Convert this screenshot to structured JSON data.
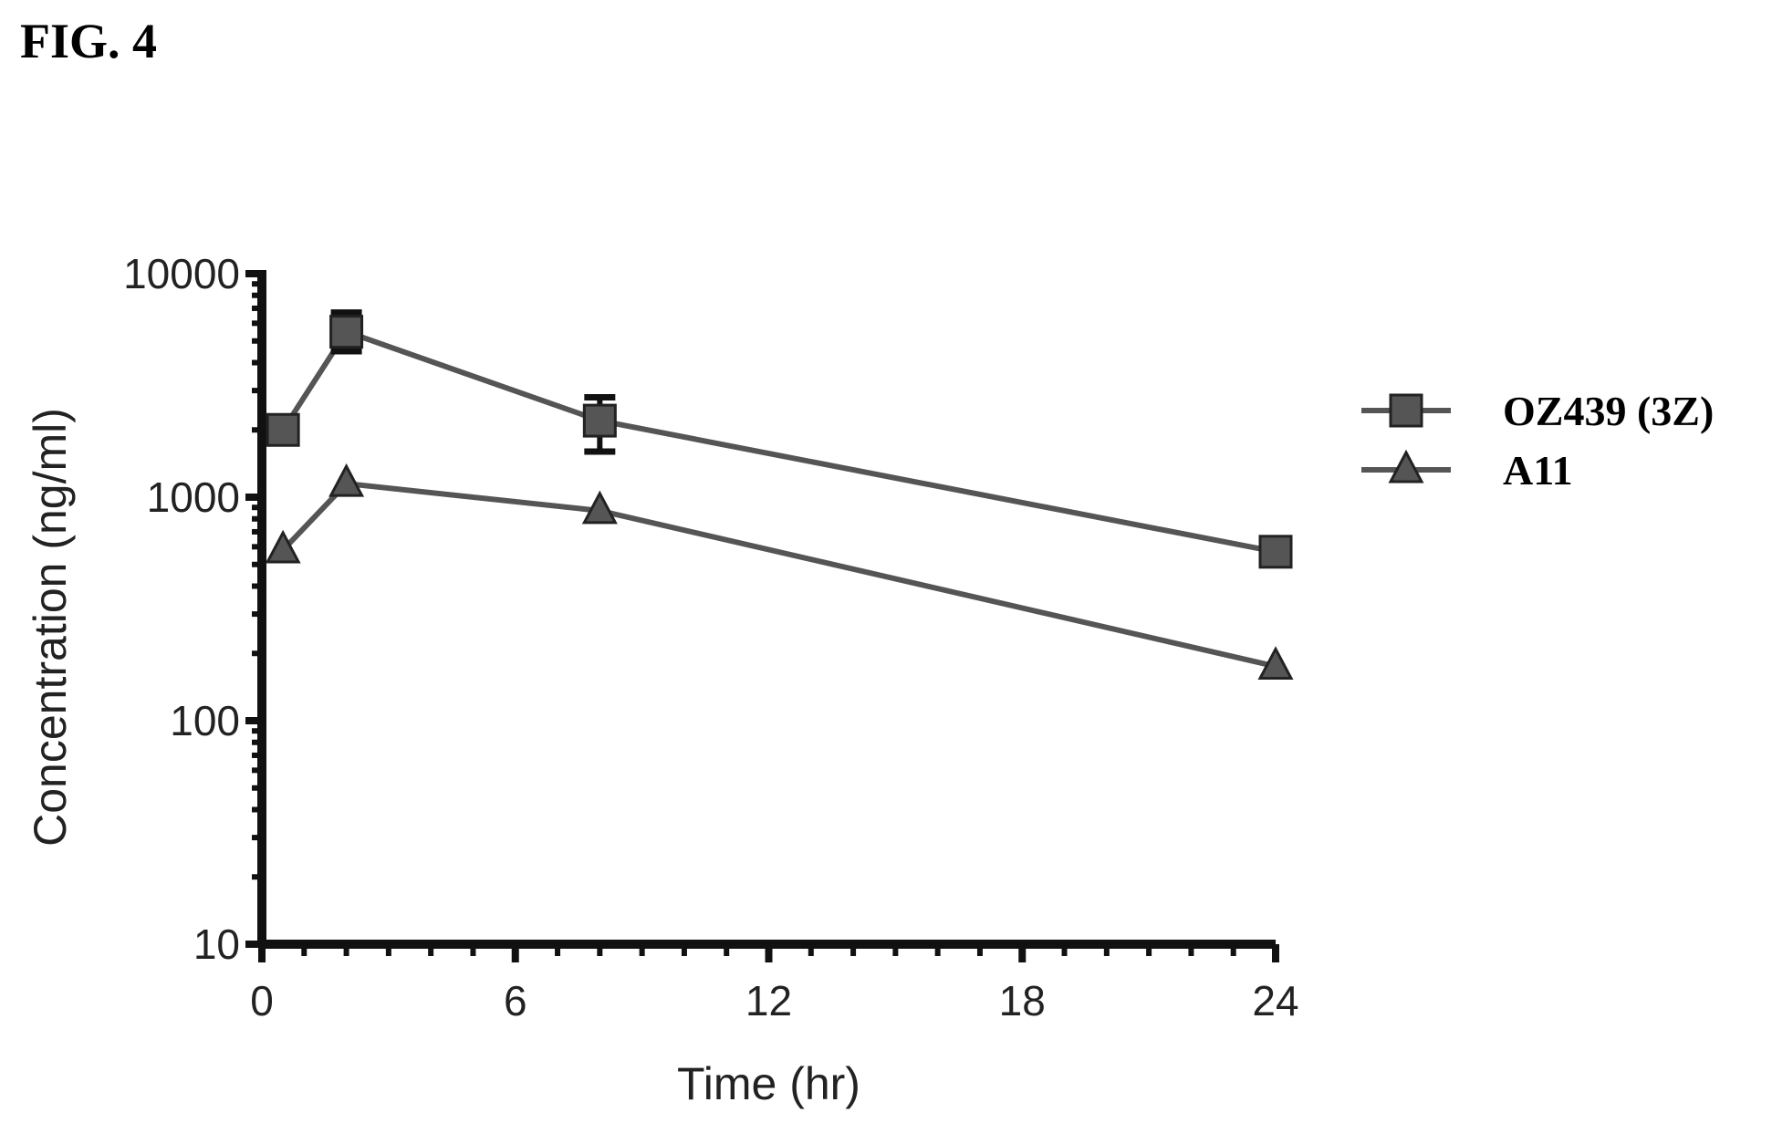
{
  "figure_label": "FIG. 4",
  "chart_data": {
    "type": "line",
    "xlabel": "Time (hr)",
    "ylabel": "Concentration (ng/ml)",
    "xlim": [
      0,
      24
    ],
    "ylim": [
      10,
      10000
    ],
    "yscale": "log",
    "xticks": [
      0,
      6,
      12,
      18,
      24
    ],
    "xtick_labels": [
      "0",
      "6",
      "12",
      "18",
      "24"
    ],
    "yticks": [
      10,
      100,
      1000,
      10000
    ],
    "ytick_labels": [
      "10",
      "100",
      "1000",
      "10000"
    ],
    "legend_position": "right",
    "series": [
      {
        "name": "OZ439 (3Z)",
        "marker": "square",
        "color": "#555555",
        "x": [
          0.5,
          2,
          8,
          24
        ],
        "y": [
          2000,
          5500,
          2200,
          570
        ],
        "err_low": [
          1750,
          4500,
          1600,
          530
        ],
        "err_high": [
          2250,
          6700,
          2800,
          620
        ]
      },
      {
        "name": "A11",
        "marker": "triangle",
        "color": "#555555",
        "x": [
          0.5,
          2,
          8,
          24
        ],
        "y": [
          580,
          1150,
          870,
          175
        ]
      }
    ]
  }
}
